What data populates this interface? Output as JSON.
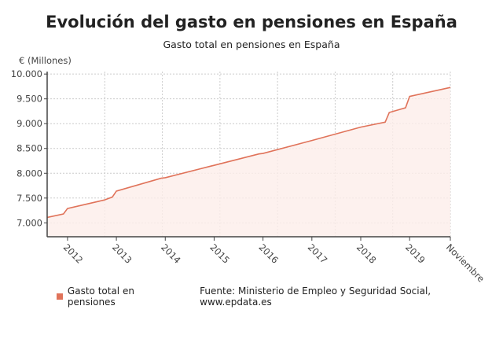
{
  "title": "Evolución del gasto en pensiones en España",
  "chart_data": {
    "type": "area",
    "title": "Gasto total en pensiones en España",
    "ylabel": "€ (Millones)",
    "ylim": [
      6720,
      10050
    ],
    "yticks": [
      "7.000",
      "7.500",
      "8.000",
      "8.500",
      "9.000",
      "9.500",
      "10.000"
    ],
    "ytick_values": [
      7000,
      7500,
      8000,
      8500,
      9000,
      9500,
      10000
    ],
    "xlim": [
      "2011-08",
      "2019-11"
    ],
    "xticks": [
      {
        "label": "2012",
        "date": "2012-01"
      },
      {
        "label": "2013",
        "date": "2013-01"
      },
      {
        "label": "2014",
        "date": "2014-01"
      },
      {
        "label": "2015",
        "date": "2015-01"
      },
      {
        "label": "2016",
        "date": "2016-01"
      },
      {
        "label": "2017",
        "date": "2017-01"
      },
      {
        "label": "2018",
        "date": "2018-01"
      },
      {
        "label": "2019",
        "date": "2019-01"
      },
      {
        "label": "Noviembre",
        "date": "2019-11"
      }
    ],
    "grid": true,
    "series": [
      {
        "name": "Gasto total en pensiones",
        "color": "#e0735a",
        "points": [
          [
            "2011-08",
            7110
          ],
          [
            "2011-12",
            7180
          ],
          [
            "2012-01",
            7290
          ],
          [
            "2012-10",
            7460
          ],
          [
            "2012-12",
            7520
          ],
          [
            "2013-01",
            7640
          ],
          [
            "2013-12",
            7900
          ],
          [
            "2014-01",
            7910
          ],
          [
            "2014-12",
            8140
          ],
          [
            "2015-01",
            8160
          ],
          [
            "2015-12",
            8390
          ],
          [
            "2016-01",
            8400
          ],
          [
            "2017-01",
            8660
          ],
          [
            "2018-01",
            8930
          ],
          [
            "2018-07",
            9030
          ],
          [
            "2018-08",
            9225
          ],
          [
            "2018-12",
            9320
          ],
          [
            "2019-01",
            9550
          ],
          [
            "2019-11",
            9730
          ]
        ]
      }
    ],
    "legend": "bottom-left"
  },
  "footer": {
    "legend_label": "Gasto total en pensiones",
    "source": "Fuente: Ministerio de Empleo y Seguridad Social, www.epdata.es"
  }
}
